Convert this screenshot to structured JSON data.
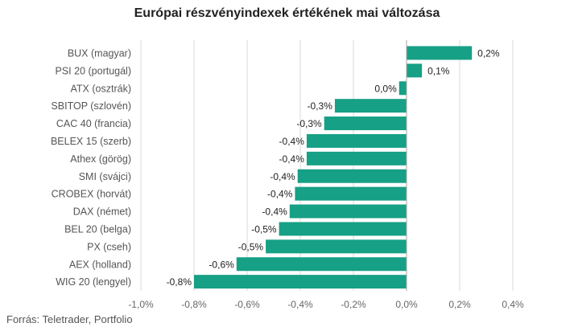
{
  "chart_data": {
    "type": "bar",
    "orientation": "horizontal",
    "title": "Európai részvényindexek értékének mai változása",
    "categories": [
      "BUX (magyar)",
      "PSI 20 (portugál)",
      "ATX (osztrák)",
      "SBITOP (szlovén)",
      "CAC 40 (francia)",
      "BELEX 15 (szerb)",
      "Athex (görög)",
      "SMI (svájci)",
      "CROBEX (horvát)",
      "DAX (német)",
      "BEL 20 (belga)",
      "PX (cseh)",
      "AEX (holland)",
      "WIG 20 (lengyel)"
    ],
    "values": [
      0.246,
      0.058,
      -0.028,
      -0.27,
      -0.31,
      -0.376,
      -0.376,
      -0.41,
      -0.42,
      -0.44,
      -0.48,
      -0.53,
      -0.64,
      -0.8
    ],
    "data_labels": [
      "0,2%",
      "0,1%",
      "0,0%",
      "-0,3%",
      "-0,3%",
      "-0,4%",
      "-0,4%",
      "-0,4%",
      "-0,4%",
      "-0,4%",
      "-0,5%",
      "-0,5%",
      "-0,6%",
      "-0,8%"
    ],
    "xlim": [
      -1.0,
      0.4
    ],
    "ticks": [
      -1.0,
      -0.8,
      -0.6,
      -0.4,
      -0.2,
      0.0,
      0.2,
      0.4
    ],
    "tick_labels": [
      "-1,0%",
      "-0,8%",
      "-0,6%",
      "-0,4%",
      "-0,2%",
      "0,0%",
      "0,2%",
      "0,4%"
    ],
    "grid": "vertical",
    "bar_color": "#16a085",
    "grid_color": "#d9d9d9",
    "source": "Forrás: Teletrader, Portfolio"
  }
}
